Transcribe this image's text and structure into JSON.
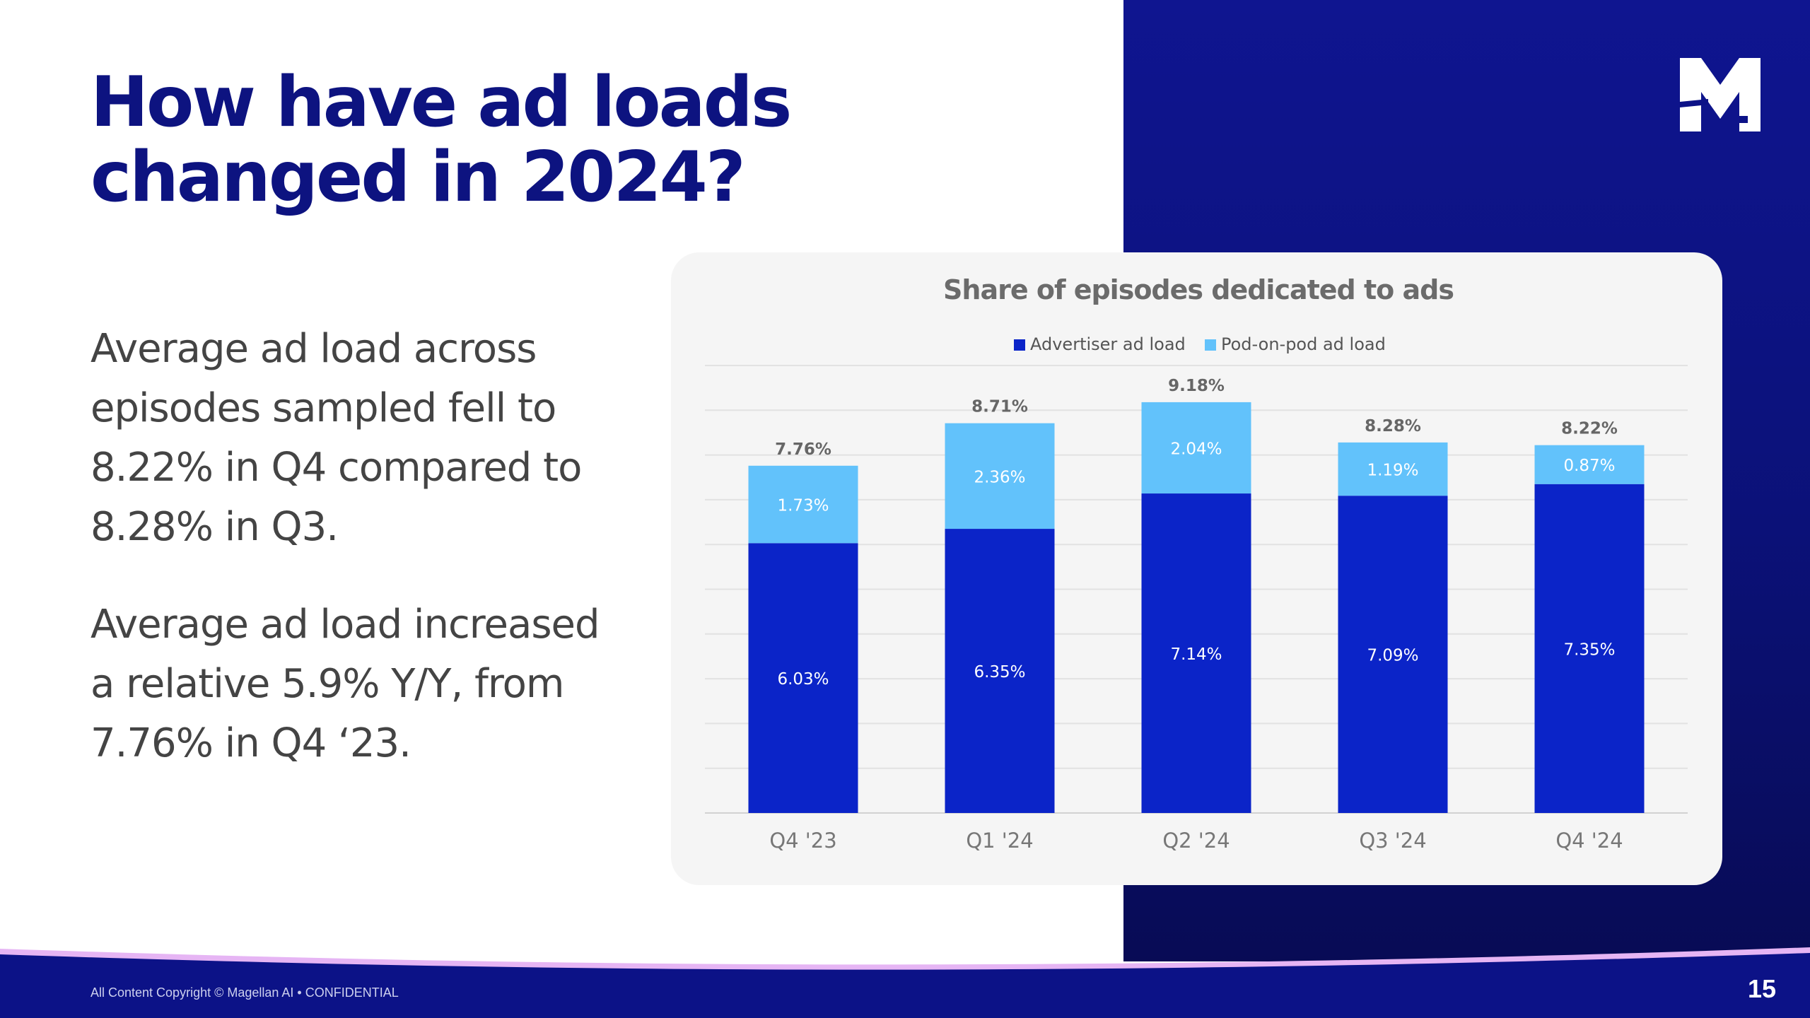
{
  "slide": {
    "title": "How have ad loads changed in 2024?",
    "paragraph_1": "Average ad load across episodes sampled fell to 8.22% in Q4 compared to 8.28% in Q3.",
    "paragraph_2": "Average ad load increased a relative 5.9% Y/Y, from 7.76% in Q4 ‘23.",
    "footer": "All Content Copyright © Magellan AI • CONFIDENTIAL",
    "page_number": "15",
    "logo_letter": "M"
  },
  "colors": {
    "brand_navy": "#0d1380",
    "advertiser": "#0b24c8",
    "pod_on_pod": "#62c2fb",
    "panel": "#0c1287",
    "wave_accent": "#e6b5f4"
  },
  "chart_data": {
    "type": "bar",
    "stacked": true,
    "title": "Share of episodes dedicated to ads",
    "categories": [
      "Q4 '23",
      "Q1 '24",
      "Q2 '24",
      "Q3 '24",
      "Q4 '24"
    ],
    "series": [
      {
        "name": "Advertiser ad load",
        "color": "#0b24c8",
        "values": [
          6.03,
          6.35,
          7.14,
          7.09,
          7.35
        ],
        "labels": [
          "6.03%",
          "6.35%",
          "7.14%",
          "7.09%",
          "7.35%"
        ]
      },
      {
        "name": "Pod-on-pod ad load",
        "color": "#62c2fb",
        "values": [
          1.73,
          2.36,
          2.04,
          1.19,
          0.87
        ],
        "labels": [
          "1.73%",
          "2.36%",
          "2.04%",
          "1.19%",
          "0.87%"
        ]
      }
    ],
    "totals": [
      7.76,
      8.71,
      9.18,
      8.28,
      8.22
    ],
    "total_labels": [
      "7.76%",
      "8.71%",
      "9.18%",
      "8.28%",
      "8.22%"
    ],
    "ylim": [
      0,
      10
    ],
    "grid": true,
    "legend": "top-center",
    "xlabel": "",
    "ylabel": ""
  }
}
